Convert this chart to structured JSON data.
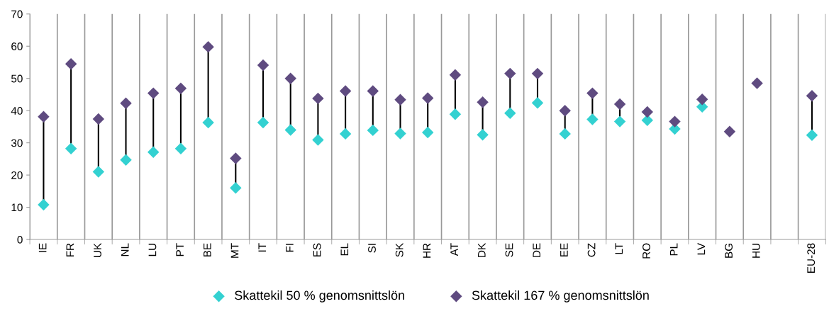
{
  "chart_data": {
    "type": "scatter",
    "categories": [
      "IE",
      "FR",
      "UK",
      "NL",
      "LU",
      "PT",
      "BE",
      "MT",
      "IT",
      "FI",
      "ES",
      "EL",
      "SI",
      "SK",
      "HR",
      "AT",
      "DK",
      "SE",
      "DE",
      "EE",
      "CZ",
      "LT",
      "RO",
      "PL",
      "LV",
      "BG",
      "HU",
      null,
      "EU-28"
    ],
    "series": [
      {
        "name": "Skattekil 50 % genomsnittslön",
        "color": "#33d1d1",
        "values": [
          10.8,
          28.2,
          21,
          24.7,
          27.1,
          28.2,
          36.3,
          16,
          36.3,
          34,
          30.9,
          32.8,
          33.9,
          32.9,
          33.2,
          38.9,
          32.5,
          39.2,
          42.4,
          32.8,
          37.3,
          36.6,
          37,
          34.3,
          41.2,
          null,
          null,
          null,
          32.4
        ]
      },
      {
        "name": "Skattekil 167 % genomsnittslön",
        "color": "#5f4b80",
        "values": [
          38.1,
          54.5,
          37.4,
          42.3,
          45.4,
          46.9,
          59.8,
          25.2,
          54.1,
          50,
          43.8,
          46.1,
          46.1,
          43.4,
          43.9,
          51.1,
          42.6,
          51.5,
          51.5,
          40,
          45.4,
          42,
          39.6,
          36.6,
          43.5,
          33.5,
          48.5,
          null,
          44.6
        ]
      }
    ],
    "ylim": [
      0,
      70
    ],
    "yticks": [
      0,
      10,
      20,
      30,
      40,
      50,
      60,
      70
    ],
    "grid": "x",
    "legend": "bottom",
    "marker": "diamond"
  }
}
